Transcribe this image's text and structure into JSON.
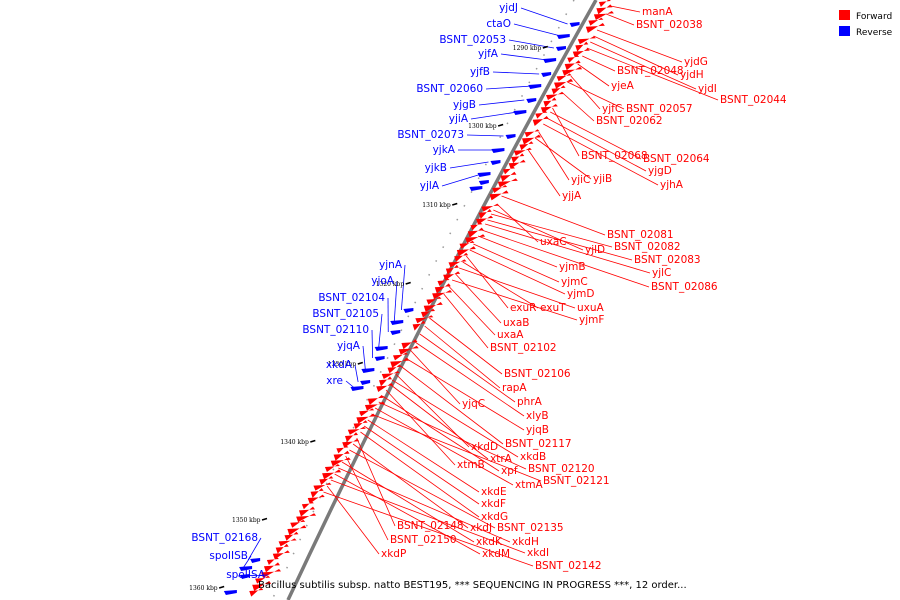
{
  "legend": [
    {
      "label": "Forward",
      "color": "#ff0000"
    },
    {
      "label": "Reverse",
      "color": "#0000ff"
    }
  ],
  "footer": "Bacillus subtilis subsp. natto BEST195, *** SEQUENCING IN PROGRESS ***, 12 order...",
  "ticks": [
    "1290 kbp",
    "1300 kbp",
    "1310 kbp",
    "1320 kbp",
    "1330 kbp",
    "1340 kbp",
    "1350 kbp",
    "1360 kbp"
  ],
  "colors": {
    "forward": "#ff0000",
    "reverse": "#0000ff",
    "axis": "#7a7a7a"
  },
  "reverse_genes": [
    "yjdJ",
    "ctaO",
    "BSNT_02053",
    "yjfA",
    "yjfB",
    "BSNT_02060",
    "yjgB",
    "yjiA",
    "BSNT_02073",
    "yjkA",
    "yjkB",
    "yjlA",
    "yjnA",
    "yjoA",
    "BSNT_02104",
    "BSNT_02105",
    "BSNT_02110",
    "yjqA",
    "xkdA",
    "xre",
    "BSNT_02168",
    "spoIISB",
    "spoIISA"
  ],
  "forward_genes": [
    "manA",
    "BSNT_02038",
    "yjdG",
    "yjdH",
    "yjdI",
    "BSNT_02044",
    "BSNT_02048",
    "yjeA",
    "yjfC",
    "BSNT_02057",
    "BSNT_02062",
    "BSNT_02068",
    "BSNT_02064",
    "yjgD",
    "yjhA",
    "yjiC",
    "yjiB",
    "yjjA",
    "BSNT_02081",
    "uxaC",
    "yjlD",
    "BSNT_02082",
    "BSNT_02083",
    "yjlC",
    "BSNT_02086",
    "yjmB",
    "yjmC",
    "yjmD",
    "exuR",
    "exuT",
    "uxuA",
    "uxaB",
    "yjmF",
    "uxaA",
    "BSNT_02102",
    "BSNT_02106",
    "rapA",
    "phrA",
    "xlyB",
    "yjqC",
    "yjqB",
    "BSNT_02117",
    "xkdD",
    "xkdB",
    "xtrA",
    "xtmB",
    "xpf",
    "BSNT_02120",
    "xtmA",
    "BSNT_02121",
    "xkdE",
    "xkdF",
    "xkdG",
    "BSNT_02148",
    "xkdJ",
    "BSNT_02135",
    "BSNT_02150",
    "xkdK",
    "xkdH",
    "xkdM",
    "xkdI",
    "xkdP",
    "BSNT_02142"
  ]
}
